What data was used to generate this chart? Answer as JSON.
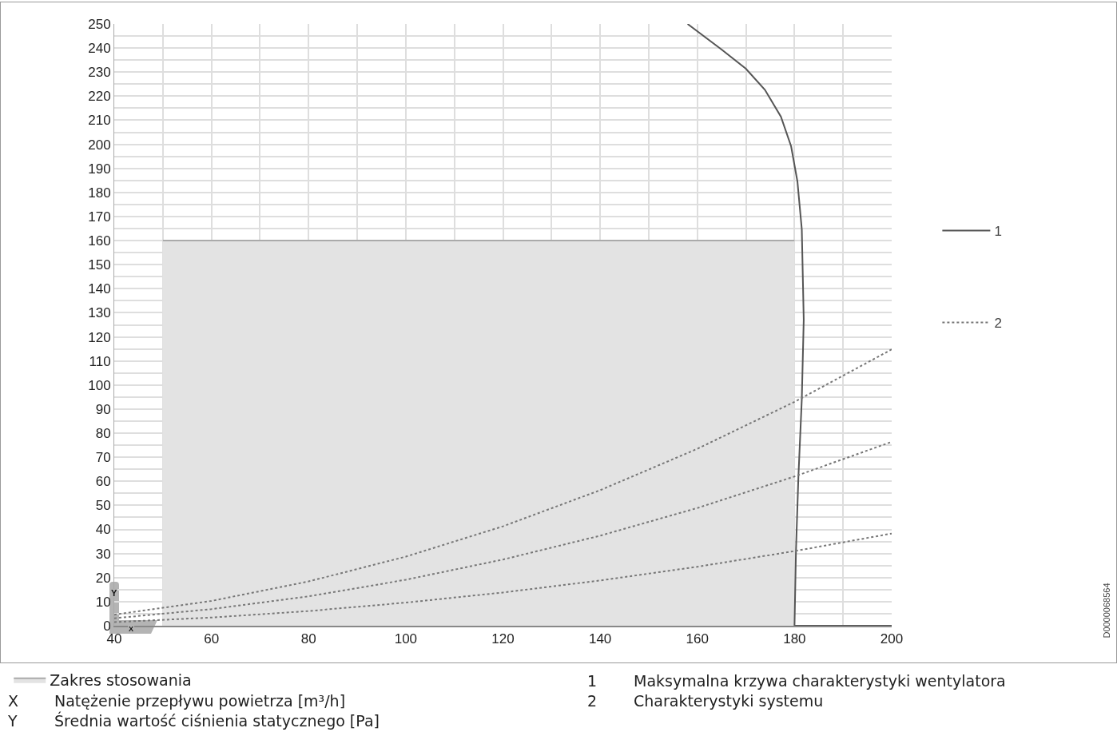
{
  "chart_data": {
    "type": "line",
    "xlabel": "Natężenie przepływu powietrza [m³/h]",
    "ylabel": "Średnia wartość ciśnienia statycznego [Pa]",
    "xlim": [
      40,
      200
    ],
    "xticks": [
      40,
      {
        "value": 50,
        "label": null
      },
      60,
      {
        "value": 70,
        "label": null
      },
      80,
      {
        "value": 90,
        "label": null
      },
      100,
      {
        "value": 110,
        "label": null
      },
      120,
      {
        "value": 130,
        "label": null
      },
      140,
      {
        "value": 150,
        "label": null
      },
      160,
      {
        "value": 170,
        "label": null
      },
      180,
      {
        "value": 190,
        "label": null
      },
      200
    ],
    "ylim": [
      0,
      250
    ],
    "yticks": [
      0,
      {
        "value": 5,
        "label": null
      },
      10,
      {
        "value": 15,
        "label": null
      },
      20,
      {
        "value": 25,
        "label": null
      },
      30,
      {
        "value": 35,
        "label": null
      },
      40,
      {
        "value": 45,
        "label": null
      },
      50,
      {
        "value": 55,
        "label": null
      },
      60,
      {
        "value": 65,
        "label": null
      },
      70,
      {
        "value": 75,
        "label": null
      },
      80,
      {
        "value": 85,
        "label": null
      },
      90,
      {
        "value": 95,
        "label": null
      },
      100,
      {
        "value": 105,
        "label": null
      },
      110,
      {
        "value": 115,
        "label": null
      },
      120,
      {
        "value": 125,
        "label": null
      },
      130,
      {
        "value": 135,
        "label": null
      },
      140,
      {
        "value": 145,
        "label": null
      },
      150,
      {
        "value": 155,
        "label": null
      },
      160,
      {
        "value": 165,
        "label": null
      },
      170,
      {
        "value": 175,
        "label": null
      },
      180,
      {
        "value": 185,
        "label": null
      },
      190,
      {
        "value": 195,
        "label": null
      },
      200,
      {
        "value": 205,
        "label": null
      },
      210,
      {
        "value": 215,
        "label": null
      },
      220,
      {
        "value": 225,
        "label": null
      },
      230,
      {
        "value": 235,
        "label": null
      },
      240,
      {
        "value": 245,
        "label": null
      },
      250
    ],
    "grid": true,
    "legend": "right",
    "series": [
      {
        "type": "area",
        "name": "Zakres stosowania",
        "color": "#e3e3e3",
        "x": [
          50,
          180
        ],
        "values": [
          160,
          160
        ]
      },
      {
        "name": "1",
        "color": "#555555",
        "line_style": "solid",
        "x": [
          158,
          165,
          170,
          173.9,
          177.2,
          179.3,
          180.6,
          181.5,
          181.9,
          181.5,
          180.8,
          180.3,
          180,
          200
        ],
        "values": [
          250,
          239.4,
          231.4,
          222.7,
          211.5,
          199.2,
          184.6,
          164.7,
          127.2,
          94,
          61.8,
          31,
          0,
          0
        ]
      },
      {
        "name": "2",
        "color": "#777777",
        "line_style": "dotted",
        "x": [
          40,
          60,
          80,
          100,
          120,
          140,
          160,
          180,
          200
        ],
        "values": [
          4.6,
          10.3,
          18.4,
          28.7,
          41.3,
          56.3,
          73.5,
          93,
          114.8
        ]
      },
      {
        "color": "#777777",
        "line_style": "dotted",
        "x": [
          40,
          60,
          80,
          100,
          120,
          140,
          160,
          180,
          200
        ],
        "values": [
          3.1,
          6.9,
          12.2,
          19.1,
          27.5,
          37.4,
          48.9,
          62,
          76.4
        ]
      },
      {
        "color": "#777777",
        "line_style": "dotted",
        "x": [
          40,
          60,
          80,
          100,
          120,
          140,
          160,
          180,
          200
        ],
        "values": [
          1.5,
          3.4,
          6.1,
          9.6,
          13.8,
          18.8,
          24.5,
          31,
          38.3
        ]
      }
    ],
    "annotations": [
      "X",
      "Y",
      "1",
      "Maksymalna krzywa charakterystyki wentylatora",
      "2",
      "Charakterystyki systemu",
      "D0000068564"
    ]
  }
}
